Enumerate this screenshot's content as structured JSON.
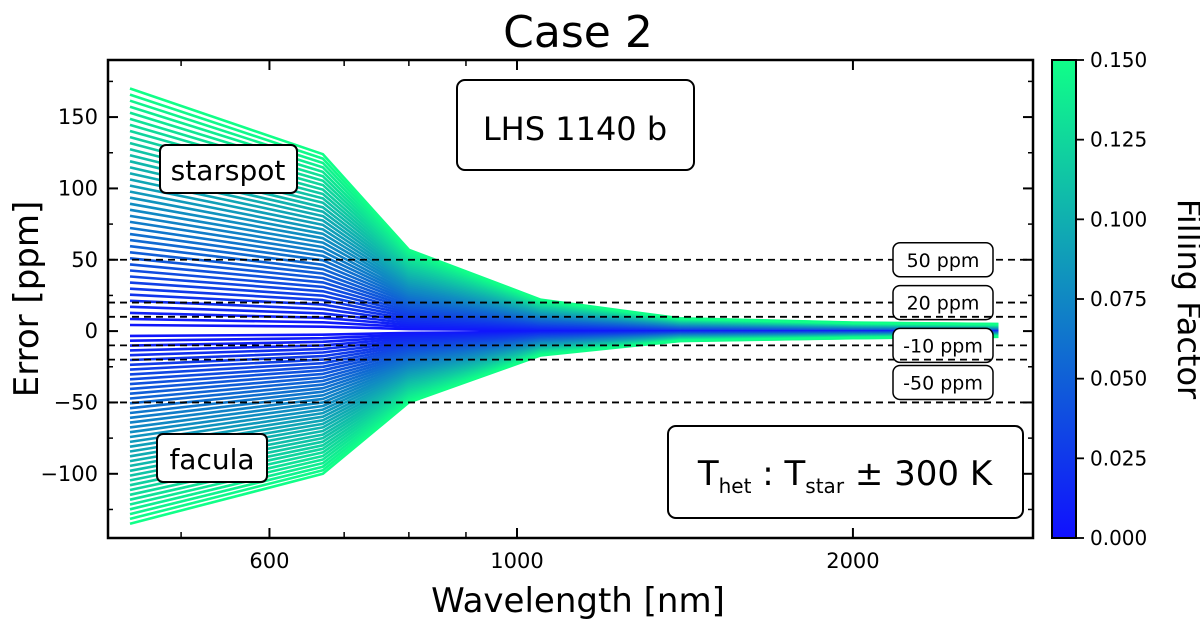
{
  "chart_data": {
    "type": "area",
    "title": "Case 2",
    "xlabel": "Wavelength [nm]",
    "ylabel": "Error [ppm]",
    "x_scale": "log",
    "xlim": [
      430,
      2900
    ],
    "ylim": [
      -145,
      190
    ],
    "x_ticks": [
      {
        "value": 600,
        "label": "600"
      },
      {
        "value": 1000,
        "label": "1000"
      },
      {
        "value": 2000,
        "label": "2000"
      }
    ],
    "x_minor_ticks": [
      500,
      700,
      800,
      900
    ],
    "y_ticks": [
      {
        "value": 150,
        "label": "150"
      },
      {
        "value": 100,
        "label": "100"
      },
      {
        "value": 50,
        "label": "50"
      },
      {
        "value": 0,
        "label": "0"
      },
      {
        "value": -50,
        "label": "−50"
      },
      {
        "value": -100,
        "label": "−100"
      }
    ],
    "reference_lines": [
      {
        "y": 50,
        "label": "50 ppm"
      },
      {
        "y": 20,
        "label": "20 ppm"
      },
      {
        "y": 10,
        "label": ""
      },
      {
        "y": -10,
        "label": "-10 ppm"
      },
      {
        "y": -20,
        "label": ""
      },
      {
        "y": -50,
        "label": "-50 ppm"
      }
    ],
    "colorbar": {
      "label": "Filling Factor",
      "range": [
        0.0,
        0.15
      ],
      "ticks": [
        "0.150",
        "0.125",
        "0.100",
        "0.075",
        "0.050",
        "0.025",
        "0.000"
      ],
      "color_min": "#1010ff",
      "color_max": "#10ff88"
    },
    "series": [
      {
        "name": "starspot",
        "x": [
          450,
          670,
          800,
          1050,
          1400,
          2000,
          2700
        ],
        "y_at_max_filling": [
          170,
          124,
          57,
          22,
          9,
          6,
          5
        ]
      },
      {
        "name": "facula",
        "x": [
          450,
          670,
          800,
          1050,
          1400,
          2000,
          2700
        ],
        "y_at_max_filling": [
          -135,
          -100,
          -50,
          -17,
          -7,
          -5,
          -4
        ]
      }
    ],
    "annotations": {
      "planet": "LHS 1140 b",
      "temperature": {
        "t1": "T",
        "s1": "het",
        "mid": " : T",
        "s2": "star",
        "tail": " ± 300 K"
      }
    }
  }
}
